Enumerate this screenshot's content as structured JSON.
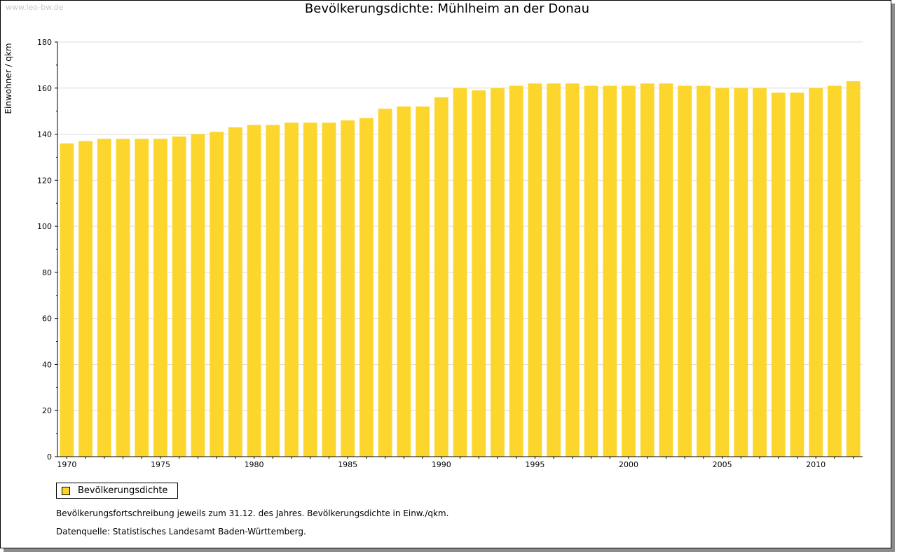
{
  "watermark": "www.leo-bw.de",
  "chart_data": {
    "type": "bar",
    "title": "Bevölkerungsdichte: Mühlheim an der Donau",
    "xlabel": "",
    "ylabel": "Einwohner / qkm",
    "ylim": [
      0,
      180
    ],
    "yticks": [
      0,
      20,
      40,
      60,
      80,
      100,
      120,
      140,
      160,
      180
    ],
    "xtick_labels": [
      "1970",
      "1975",
      "1980",
      "1985",
      "1990",
      "1995",
      "2000",
      "2005",
      "2010"
    ],
    "grid": "horizontal",
    "legend_position": "bottom-left",
    "categories": [
      "1970",
      "1971",
      "1972",
      "1973",
      "1974",
      "1975",
      "1976",
      "1977",
      "1978",
      "1979",
      "1980",
      "1981",
      "1982",
      "1983",
      "1984",
      "1985",
      "1986",
      "1987",
      "1988",
      "1989",
      "1990",
      "1991",
      "1992",
      "1993",
      "1994",
      "1995",
      "1996",
      "1997",
      "1998",
      "1999",
      "2000",
      "2001",
      "2002",
      "2003",
      "2004",
      "2005",
      "2006",
      "2007",
      "2008",
      "2009",
      "2010",
      "2011",
      "2012"
    ],
    "series": [
      {
        "name": "Bevölkerungsdichte",
        "color": "#fcd62c",
        "values": [
          136,
          137,
          138,
          138,
          138,
          138,
          139,
          140,
          141,
          143,
          144,
          144,
          145,
          145,
          145,
          146,
          147,
          151,
          152,
          152,
          156,
          160,
          159,
          160,
          161,
          162,
          162,
          162,
          161,
          161,
          161,
          162,
          162,
          161,
          161,
          160,
          160,
          160,
          158,
          158,
          160,
          161,
          163
        ]
      }
    ]
  },
  "notes": {
    "line1": "Bevölkerungsfortschreibung jeweils zum 31.12. des Jahres. Bevölkerungsdichte in Einw./qkm.",
    "line2": "Datenquelle: Statistisches Landesamt Baden-Württemberg."
  }
}
